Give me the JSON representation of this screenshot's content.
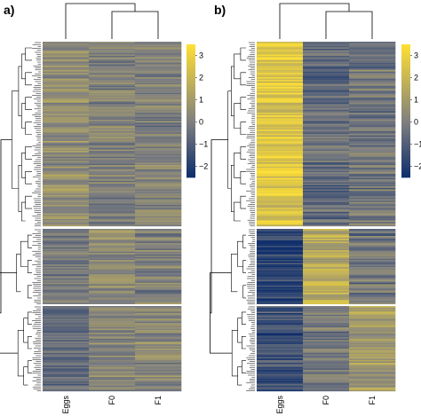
{
  "chart_data": [
    {
      "type": "heatmap",
      "panel_label": "a)",
      "columns": [
        "Eggs",
        "F0",
        "F1"
      ],
      "row_clusters": 3,
      "color_scale": {
        "colors": [
          "#0d2d6b",
          "#7f7f7f",
          "#ffe033"
        ],
        "range": [
          -2.5,
          3.5
        ],
        "ticks": [
          "3",
          "2",
          "1",
          "0",
          "−1",
          "−2"
        ],
        "tick_values": [
          3,
          2,
          1,
          0,
          -1,
          -2
        ]
      },
      "cluster_mean_values": [
        [
          0.5,
          0.1,
          0.1
        ],
        [
          -0.3,
          0.4,
          0.1
        ],
        [
          -0.5,
          0.2,
          0.3
        ]
      ],
      "cluster_variability": [
        1.0,
        0.8,
        0.8
      ]
    },
    {
      "type": "heatmap",
      "panel_label": "b)",
      "columns": [
        "Eggs",
        "F0",
        "F1"
      ],
      "row_clusters": 3,
      "color_scale": {
        "colors": [
          "#0d2d6b",
          "#7f7f7f",
          "#ffe033"
        ],
        "range": [
          -2.5,
          3.5
        ],
        "ticks": [
          "3",
          "2",
          "1",
          "0",
          "−1",
          "−2"
        ],
        "tick_values": [
          3,
          2,
          1,
          0,
          -1,
          -2
        ]
      },
      "cluster_mean_values": [
        [
          2.6,
          -0.6,
          -0.3
        ],
        [
          -1.8,
          1.6,
          -0.3
        ],
        [
          -1.4,
          -0.1,
          1.0
        ]
      ],
      "cluster_variability": [
        1.3,
        1.2,
        1.2
      ]
    }
  ]
}
